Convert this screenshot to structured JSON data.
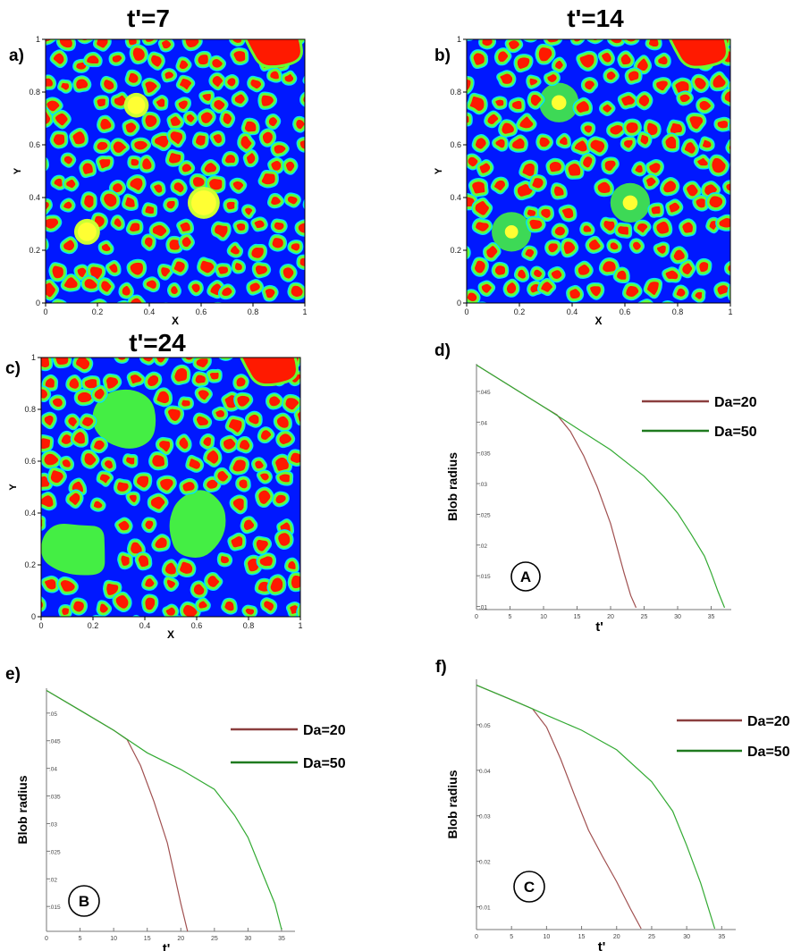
{
  "colors": {
    "background": "#0018ff",
    "halo": "#00e0ff",
    "ring": "#66ff33",
    "core": "#ff1a00",
    "blob_core": "#ffff33",
    "blob_ring": "#ccff33",
    "absorbed": "#44ee44",
    "da20": "#a05050",
    "da50": "#33aa33",
    "legend_da20": "#8b3f3f",
    "legend_da50": "#1f7a1f"
  },
  "chart_data": [
    {
      "id": "a",
      "type": "heatmap",
      "panel_label": "a)",
      "title": "t'=7",
      "xlabel": "X",
      "ylabel": "Y",
      "xlim": [
        0,
        1
      ],
      "ylim": [
        0,
        1
      ],
      "xticks": [
        "0",
        "0.2",
        "0.4",
        "0.6",
        "0.8",
        "1"
      ],
      "yticks": [
        "0",
        "0.2",
        "0.4",
        "0.6",
        "0.8",
        "1"
      ],
      "blobs": [
        {
          "x": 0.35,
          "y": 0.75,
          "r": 0.034,
          "state": "compact"
        },
        {
          "x": 0.61,
          "y": 0.38,
          "r": 0.048,
          "state": "compact"
        },
        {
          "x": 0.16,
          "y": 0.27,
          "r": 0.036,
          "state": "compact"
        }
      ]
    },
    {
      "id": "b",
      "type": "heatmap",
      "panel_label": "b)",
      "title": "t'=14",
      "xlabel": "X",
      "ylabel": "Y",
      "xlim": [
        0,
        1
      ],
      "ylim": [
        0,
        1
      ],
      "xticks": [
        "0",
        "0.2",
        "0.4",
        "0.6",
        "0.8",
        "1"
      ],
      "yticks": [
        "0",
        "0.2",
        "0.4",
        "0.6",
        "0.8",
        "1"
      ],
      "blobs": [
        {
          "x": 0.35,
          "y": 0.76,
          "r": 0.028,
          "state": "spreading"
        },
        {
          "x": 0.62,
          "y": 0.38,
          "r": 0.028,
          "state": "spreading"
        },
        {
          "x": 0.17,
          "y": 0.27,
          "r": 0.025,
          "state": "spreading"
        }
      ]
    },
    {
      "id": "c",
      "type": "heatmap",
      "panel_label": "c)",
      "title": "t'=24",
      "xlabel": "X",
      "ylabel": "Y",
      "xlim": [
        0,
        1
      ],
      "ylim": [
        0,
        1
      ],
      "xticks": [
        "0",
        "0.2",
        "0.4",
        "0.6",
        "0.8",
        "1"
      ],
      "yticks": [
        "0",
        "0.2",
        "0.4",
        "0.6",
        "0.8",
        "1"
      ],
      "blobs": [
        {
          "x": 0.33,
          "y": 0.76,
          "r": 0.0,
          "state": "absorbed"
        },
        {
          "x": 0.6,
          "y": 0.35,
          "r": 0.0,
          "state": "absorbed"
        },
        {
          "x": 0.13,
          "y": 0.26,
          "r": 0.0,
          "state": "absorbed"
        }
      ]
    },
    {
      "id": "d",
      "type": "line",
      "panel_label": "d)",
      "title": "",
      "marker": "A",
      "xlabel": "t'",
      "ylabel": "Blob radius",
      "xlim": [
        0,
        38
      ],
      "ylim": [
        0.0095,
        0.0495
      ],
      "xticks": [
        0,
        5,
        10,
        15,
        20,
        25,
        30,
        35
      ],
      "yticks": [
        0.01,
        0.015,
        0.02,
        0.025,
        0.03,
        0.035,
        0.04,
        0.045
      ],
      "ytick_labels": [
        ".01",
        ".015",
        ".02",
        ".025",
        ".03",
        ".035",
        ".04",
        ".045"
      ],
      "legend_position": "top-right",
      "series": [
        {
          "name": "Da=20",
          "x": [
            0,
            5,
            10,
            12,
            14,
            16,
            18,
            20,
            21,
            22,
            23,
            23.8
          ],
          "y": [
            0.0493,
            0.0459,
            0.0425,
            0.0412,
            0.0385,
            0.0345,
            0.0295,
            0.0235,
            0.0195,
            0.0155,
            0.0118,
            0.0098
          ]
        },
        {
          "name": "Da=50",
          "x": [
            0,
            5,
            10,
            15,
            20,
            25,
            28,
            30,
            32,
            34,
            35,
            36,
            37
          ],
          "y": [
            0.0493,
            0.0459,
            0.0425,
            0.039,
            0.0355,
            0.0312,
            0.0278,
            0.0252,
            0.0218,
            0.0182,
            0.0155,
            0.0125,
            0.0098
          ]
        }
      ]
    },
    {
      "id": "e",
      "type": "line",
      "panel_label": "e)",
      "title": "",
      "marker": "B",
      "xlabel": "t'",
      "ylabel": "Blob radius",
      "xlim": [
        0,
        37
      ],
      "ylim": [
        0.0105,
        0.0545
      ],
      "xticks": [
        0,
        5,
        10,
        15,
        20,
        25,
        30,
        35
      ],
      "yticks": [
        0.015,
        0.02,
        0.025,
        0.03,
        0.035,
        0.04,
        0.045,
        0.05
      ],
      "ytick_labels": [
        ".015",
        ".02",
        ".025",
        ".03",
        ".035",
        ".04",
        ".045",
        ".05"
      ],
      "legend_position": "top-right",
      "series": [
        {
          "name": "Da=20",
          "x": [
            0,
            5,
            10,
            12,
            14,
            16,
            18,
            19,
            20,
            21
          ],
          "y": [
            0.0541,
            0.0505,
            0.0469,
            0.0452,
            0.0405,
            0.034,
            0.0265,
            0.021,
            0.0155,
            0.0105
          ]
        },
        {
          "name": "Da=50",
          "x": [
            0,
            5,
            10,
            15,
            20,
            25,
            28,
            30,
            32,
            34,
            35
          ],
          "y": [
            0.0541,
            0.0505,
            0.0469,
            0.0428,
            0.0398,
            0.0362,
            0.0315,
            0.0275,
            0.0215,
            0.0155,
            0.0108
          ]
        }
      ]
    },
    {
      "id": "f",
      "type": "line",
      "panel_label": "f)",
      "title": "",
      "marker": "C",
      "xlabel": "t'",
      "ylabel": "Blob radius",
      "xlim": [
        0,
        37
      ],
      "ylim": [
        0.005,
        0.06
      ],
      "xticks": [
        0,
        5,
        10,
        15,
        20,
        25,
        30,
        35
      ],
      "yticks": [
        0.01,
        0.02,
        0.03,
        0.04,
        0.05
      ],
      "ytick_labels": [
        "0.01",
        "0.02",
        "0.03",
        "0.04",
        "0.05"
      ],
      "legend_position": "top-right",
      "series": [
        {
          "name": "Da=20",
          "x": [
            0,
            5,
            8,
            10,
            12,
            14,
            16,
            18,
            20,
            22,
            23.5
          ],
          "y": [
            0.0587,
            0.0555,
            0.0535,
            0.0495,
            0.0425,
            0.0345,
            0.0268,
            0.021,
            0.0155,
            0.0095,
            0.0052
          ]
        },
        {
          "name": "Da=50",
          "x": [
            0,
            5,
            8,
            10,
            15,
            20,
            25,
            28,
            30,
            32,
            34
          ],
          "y": [
            0.0587,
            0.0555,
            0.0535,
            0.0521,
            0.0488,
            0.0445,
            0.0375,
            0.031,
            0.0235,
            0.0152,
            0.0052
          ]
        }
      ]
    }
  ]
}
